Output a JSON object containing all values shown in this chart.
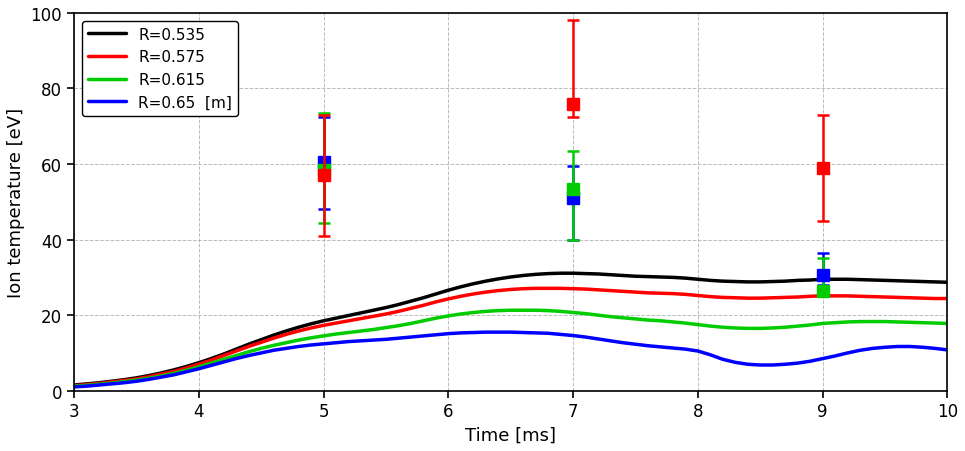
{
  "title": "",
  "xlabel": "Time [ms]",
  "ylabel": "Ion temperature [eV]",
  "xlim": [
    3,
    10
  ],
  "ylim": [
    0,
    100
  ],
  "yticks": [
    0,
    20,
    40,
    60,
    80,
    100
  ],
  "xticks": [
    3,
    4,
    5,
    6,
    7,
    8,
    9,
    10
  ],
  "lines": {
    "R0535": {
      "color": "#000000",
      "label": "R=0.535",
      "x": [
        3.0,
        3.1,
        3.2,
        3.3,
        3.4,
        3.5,
        3.6,
        3.7,
        3.8,
        3.9,
        4.0,
        4.1,
        4.2,
        4.3,
        4.4,
        4.5,
        4.6,
        4.7,
        4.8,
        4.9,
        5.0,
        5.1,
        5.2,
        5.3,
        5.4,
        5.5,
        5.6,
        5.7,
        5.8,
        5.9,
        6.0,
        6.1,
        6.2,
        6.3,
        6.4,
        6.5,
        6.6,
        6.7,
        6.8,
        6.9,
        7.0,
        7.1,
        7.2,
        7.3,
        7.4,
        7.5,
        7.6,
        7.7,
        7.8,
        7.9,
        8.0,
        8.1,
        8.2,
        8.3,
        8.4,
        8.5,
        8.6,
        8.7,
        8.8,
        8.9,
        9.0,
        9.1,
        9.2,
        9.3,
        9.4,
        9.5,
        9.6,
        9.7,
        9.8,
        9.9,
        10.0
      ],
      "y": [
        1.5,
        1.8,
        2.1,
        2.5,
        2.9,
        3.4,
        4.0,
        4.7,
        5.5,
        6.4,
        7.4,
        8.5,
        9.7,
        11.0,
        12.3,
        13.5,
        14.7,
        15.8,
        16.8,
        17.7,
        18.5,
        19.2,
        19.9,
        20.6,
        21.3,
        22.0,
        22.8,
        23.7,
        24.6,
        25.6,
        26.6,
        27.5,
        28.3,
        29.0,
        29.6,
        30.1,
        30.5,
        30.8,
        31.0,
        31.1,
        31.1,
        31.0,
        30.9,
        30.7,
        30.5,
        30.3,
        30.2,
        30.1,
        30.0,
        29.8,
        29.5,
        29.2,
        29.0,
        28.9,
        28.8,
        28.8,
        28.9,
        29.0,
        29.2,
        29.3,
        29.5,
        29.5,
        29.5,
        29.4,
        29.3,
        29.2,
        29.1,
        29.0,
        28.9,
        28.8,
        28.7
      ]
    },
    "R0575": {
      "color": "#ff0000",
      "label": "R=0.575",
      "x": [
        3.0,
        3.1,
        3.2,
        3.3,
        3.4,
        3.5,
        3.6,
        3.7,
        3.8,
        3.9,
        4.0,
        4.1,
        4.2,
        4.3,
        4.4,
        4.5,
        4.6,
        4.7,
        4.8,
        4.9,
        5.0,
        5.1,
        5.2,
        5.3,
        5.4,
        5.5,
        5.6,
        5.7,
        5.8,
        5.9,
        6.0,
        6.1,
        6.2,
        6.3,
        6.4,
        6.5,
        6.6,
        6.7,
        6.8,
        6.9,
        7.0,
        7.1,
        7.2,
        7.3,
        7.4,
        7.5,
        7.6,
        7.7,
        7.8,
        7.9,
        8.0,
        8.1,
        8.2,
        8.3,
        8.4,
        8.5,
        8.6,
        8.7,
        8.8,
        8.9,
        9.0,
        9.1,
        9.2,
        9.3,
        9.4,
        9.5,
        9.6,
        9.7,
        9.8,
        9.9,
        10.0
      ],
      "y": [
        1.3,
        1.6,
        1.9,
        2.3,
        2.7,
        3.1,
        3.7,
        4.4,
        5.1,
        6.0,
        7.0,
        8.1,
        9.3,
        10.5,
        11.7,
        12.8,
        13.9,
        14.9,
        15.8,
        16.6,
        17.3,
        17.9,
        18.5,
        19.1,
        19.7,
        20.3,
        21.0,
        21.8,
        22.6,
        23.5,
        24.3,
        25.0,
        25.6,
        26.1,
        26.5,
        26.8,
        27.0,
        27.1,
        27.1,
        27.1,
        27.0,
        26.9,
        26.7,
        26.5,
        26.3,
        26.1,
        25.9,
        25.8,
        25.7,
        25.5,
        25.2,
        24.9,
        24.7,
        24.6,
        24.5,
        24.5,
        24.6,
        24.7,
        24.8,
        25.0,
        25.1,
        25.1,
        25.1,
        25.0,
        24.9,
        24.8,
        24.7,
        24.6,
        24.5,
        24.4,
        24.4
      ]
    },
    "R0615": {
      "color": "#00cc00",
      "label": "R=0.615",
      "x": [
        3.0,
        3.1,
        3.2,
        3.3,
        3.4,
        3.5,
        3.6,
        3.7,
        3.8,
        3.9,
        4.0,
        4.1,
        4.2,
        4.3,
        4.4,
        4.5,
        4.6,
        4.7,
        4.8,
        4.9,
        5.0,
        5.1,
        5.2,
        5.3,
        5.4,
        5.5,
        5.6,
        5.7,
        5.8,
        5.9,
        6.0,
        6.1,
        6.2,
        6.3,
        6.4,
        6.5,
        6.6,
        6.7,
        6.8,
        6.9,
        7.0,
        7.1,
        7.2,
        7.3,
        7.4,
        7.5,
        7.6,
        7.7,
        7.8,
        7.9,
        8.0,
        8.1,
        8.2,
        8.3,
        8.4,
        8.5,
        8.6,
        8.7,
        8.8,
        8.9,
        9.0,
        9.1,
        9.2,
        9.3,
        9.4,
        9.5,
        9.6,
        9.7,
        9.8,
        9.9,
        10.0
      ],
      "y": [
        1.2,
        1.4,
        1.7,
        2.0,
        2.4,
        2.8,
        3.3,
        3.9,
        4.6,
        5.4,
        6.3,
        7.3,
        8.3,
        9.3,
        10.3,
        11.2,
        12.0,
        12.7,
        13.4,
        14.0,
        14.5,
        15.0,
        15.4,
        15.8,
        16.2,
        16.7,
        17.2,
        17.8,
        18.5,
        19.2,
        19.8,
        20.3,
        20.7,
        21.0,
        21.2,
        21.3,
        21.3,
        21.3,
        21.2,
        21.0,
        20.7,
        20.4,
        20.0,
        19.6,
        19.3,
        19.0,
        18.7,
        18.5,
        18.2,
        17.9,
        17.5,
        17.1,
        16.8,
        16.6,
        16.5,
        16.5,
        16.6,
        16.8,
        17.1,
        17.4,
        17.8,
        18.0,
        18.2,
        18.3,
        18.3,
        18.3,
        18.2,
        18.1,
        18.0,
        17.9,
        17.8
      ]
    },
    "R065": {
      "color": "#0000ff",
      "label": "R=0.65  [m]",
      "x": [
        3.0,
        3.1,
        3.2,
        3.3,
        3.4,
        3.5,
        3.6,
        3.7,
        3.8,
        3.9,
        4.0,
        4.1,
        4.2,
        4.3,
        4.4,
        4.5,
        4.6,
        4.7,
        4.8,
        4.9,
        5.0,
        5.1,
        5.2,
        5.3,
        5.4,
        5.5,
        5.6,
        5.7,
        5.8,
        5.9,
        6.0,
        6.1,
        6.2,
        6.3,
        6.4,
        6.5,
        6.6,
        6.7,
        6.8,
        6.9,
        7.0,
        7.1,
        7.2,
        7.3,
        7.4,
        7.5,
        7.6,
        7.7,
        7.8,
        7.9,
        8.0,
        8.1,
        8.2,
        8.3,
        8.4,
        8.5,
        8.6,
        8.7,
        8.8,
        8.9,
        9.0,
        9.1,
        9.2,
        9.3,
        9.4,
        9.5,
        9.6,
        9.7,
        9.8,
        9.9,
        10.0
      ],
      "y": [
        1.0,
        1.2,
        1.5,
        1.8,
        2.1,
        2.5,
        3.0,
        3.6,
        4.2,
        5.0,
        5.8,
        6.7,
        7.6,
        8.5,
        9.3,
        10.0,
        10.7,
        11.2,
        11.7,
        12.1,
        12.4,
        12.7,
        13.0,
        13.2,
        13.4,
        13.6,
        13.9,
        14.2,
        14.5,
        14.8,
        15.1,
        15.3,
        15.4,
        15.5,
        15.5,
        15.5,
        15.4,
        15.3,
        15.2,
        14.9,
        14.6,
        14.2,
        13.7,
        13.2,
        12.7,
        12.3,
        11.9,
        11.6,
        11.3,
        11.0,
        10.5,
        9.5,
        8.3,
        7.5,
        7.0,
        6.8,
        6.8,
        7.0,
        7.3,
        7.8,
        8.5,
        9.2,
        10.0,
        10.7,
        11.2,
        11.5,
        11.7,
        11.7,
        11.5,
        11.2,
        10.8
      ]
    }
  },
  "exp_points": {
    "R0575": {
      "color": "#ff0000",
      "x": [
        5.0,
        7.0,
        9.0
      ],
      "y": [
        57.0,
        76.0,
        59.0
      ],
      "yerr_low": [
        16.0,
        3.5,
        14.0
      ],
      "yerr_high": [
        16.0,
        22.0,
        14.0
      ]
    },
    "R0615": {
      "color": "#00cc00",
      "x": [
        5.0,
        7.0,
        9.0
      ],
      "y": [
        58.5,
        53.5,
        26.5
      ],
      "yerr_low": [
        14.0,
        13.5,
        1.5
      ],
      "yerr_high": [
        15.0,
        10.0,
        8.5
      ]
    },
    "R065": {
      "color": "#0000ff",
      "x": [
        5.0,
        7.0,
        9.0
      ],
      "y": [
        60.5,
        51.0,
        30.5
      ],
      "yerr_low": [
        12.5,
        11.0,
        2.5
      ],
      "yerr_high": [
        12.0,
        8.5,
        6.0
      ]
    }
  },
  "background_color": "#ffffff",
  "grid_color": "#aaaaaa",
  "linewidth": 2.5,
  "markersize": 9,
  "capsize": 4
}
